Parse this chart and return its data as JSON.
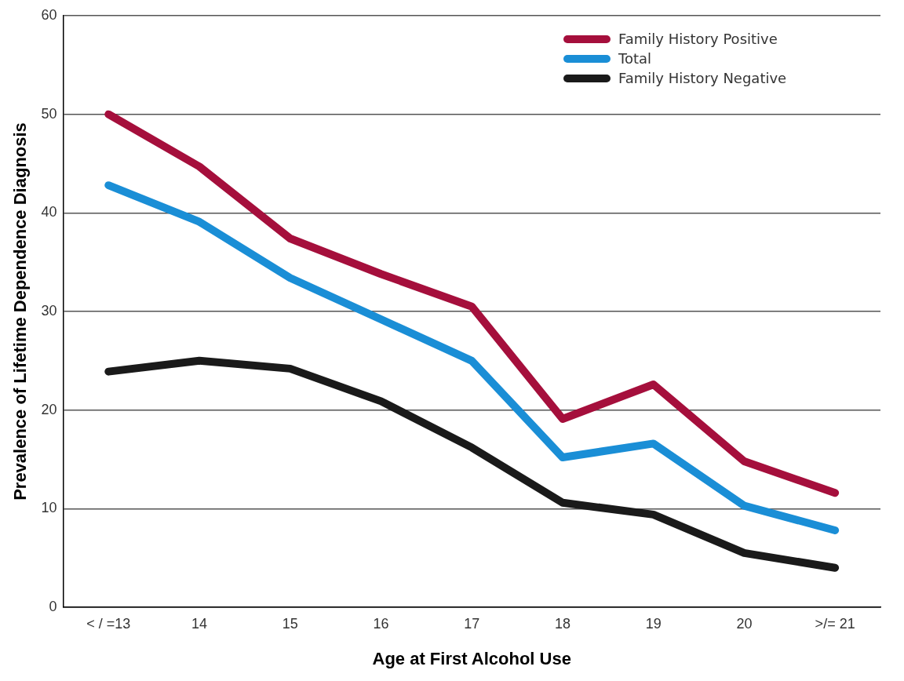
{
  "chart_data": {
    "type": "line",
    "xlabel": "Age at First Alcohol Use",
    "ylabel": "Prevalence of Lifetime Dependence Diagnosis",
    "categories": [
      "< / =13",
      "14",
      "15",
      "16",
      "17",
      "18",
      "19",
      "20",
      ">/= 21"
    ],
    "series": [
      {
        "name": "Family History Positive",
        "color": "#a50f3c",
        "values": [
          50,
          44.7,
          37.4,
          33.8,
          30.5,
          19.1,
          22.6,
          14.8,
          11.6
        ]
      },
      {
        "name": "Total",
        "color": "#1a8ed6",
        "values": [
          42.8,
          39.1,
          33.4,
          29.2,
          25.0,
          15.2,
          16.6,
          10.3,
          7.8
        ]
      },
      {
        "name": "Family History Negative",
        "color": "#1a1a1a",
        "values": [
          23.9,
          25.0,
          24.2,
          20.9,
          16.2,
          10.6,
          9.4,
          5.5,
          4.0
        ]
      }
    ],
    "ylim": [
      0,
      60
    ],
    "yticks": [
      0,
      10,
      20,
      30,
      40,
      50,
      60
    ],
    "grid": "y",
    "legend": "top right",
    "marker": "none",
    "line_style": "solid"
  }
}
